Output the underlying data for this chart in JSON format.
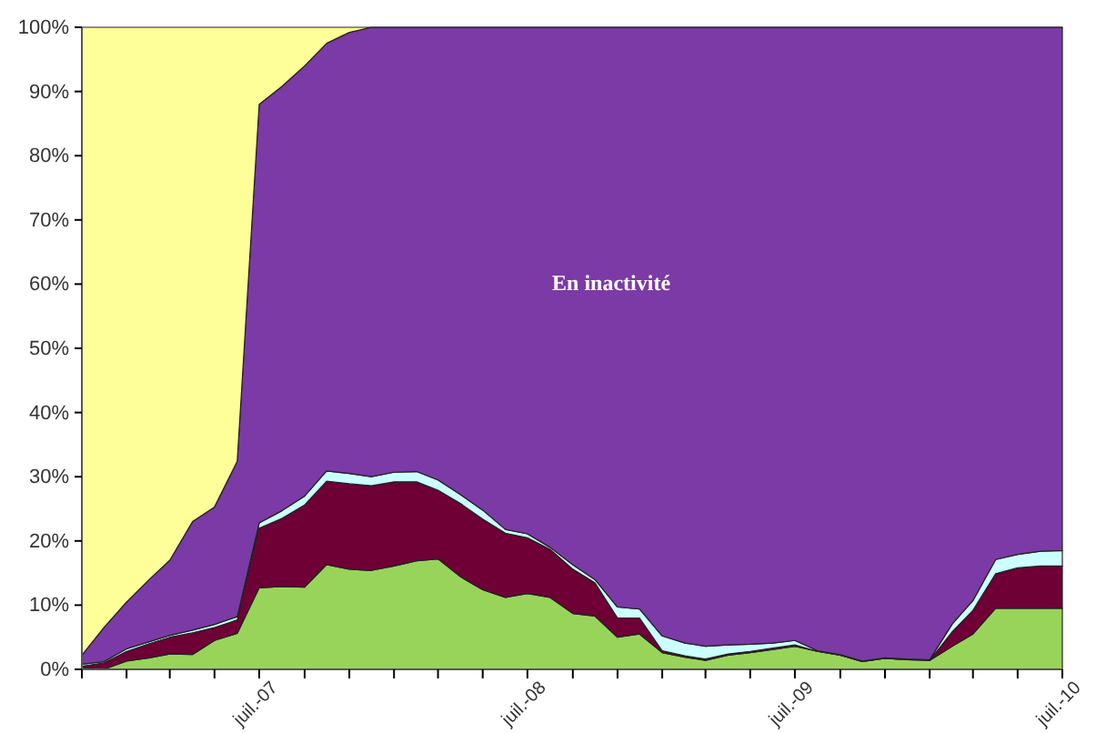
{
  "chart_data": {
    "type": "area",
    "stacked": true,
    "x": [
      "2006-11",
      "2006-12",
      "2007-01",
      "2007-02",
      "2007-03",
      "2007-04",
      "2007-05",
      "2007-06",
      "2007-07",
      "2007-08",
      "2007-09",
      "2007-10",
      "2007-11",
      "2007-12",
      "2008-01",
      "2008-02",
      "2008-03",
      "2008-04",
      "2008-05",
      "2008-06",
      "2008-07",
      "2008-08",
      "2008-09",
      "2008-10",
      "2008-11",
      "2008-12",
      "2009-01",
      "2009-02",
      "2009-03",
      "2009-04",
      "2009-05",
      "2009-06",
      "2009-07",
      "2009-08",
      "2009-09",
      "2009-10",
      "2009-11",
      "2009-12",
      "2010-01",
      "2010-02",
      "2010-03",
      "2010-04",
      "2010-05",
      "2010-06",
      "2010-07"
    ],
    "series": [
      {
        "color": "#99d45a",
        "values": [
          0.3,
          0,
          1.3,
          1.8,
          2.4,
          2.3,
          4.5,
          5.6,
          12.7,
          12.9,
          12.8,
          16.3,
          15.6,
          15.4,
          16.1,
          16.9,
          17.2,
          14.4,
          12.4,
          11.2,
          11.8,
          11.2,
          8.7,
          8.3,
          5.0,
          5.5,
          2.6,
          1.9,
          1.4,
          2.2,
          2.6,
          3.1,
          3.6,
          2.8,
          2.2,
          1.2,
          1.7,
          1.5,
          1.4,
          3.6,
          5.5,
          9.5,
          9.5,
          9.5,
          9.5
        ]
      },
      {
        "color": "#6e0036",
        "values": [
          0.2,
          1.0,
          1.5,
          2.2,
          2.6,
          3.4,
          2.0,
          2.1,
          9.3,
          10.6,
          12.8,
          13.0,
          13.3,
          13.2,
          13.1,
          12.3,
          10.7,
          11.4,
          11.0,
          10.0,
          8.7,
          7.5,
          6.9,
          5.2,
          3.0,
          2.5,
          0.3,
          0.2,
          0.2,
          0.2,
          0.2,
          0.2,
          0.2,
          0,
          0,
          0,
          0,
          0,
          0,
          2.3,
          3.7,
          5.4,
          6.3,
          6.6,
          6.6
        ]
      },
      {
        "color": "#ccffff",
        "values": [
          0.3,
          0.2,
          0.4,
          0.3,
          0.3,
          0.4,
          0.5,
          0.5,
          0.8,
          1.2,
          1.4,
          1.6,
          1.6,
          1.4,
          1.5,
          1.6,
          1.6,
          1.4,
          1.4,
          0.6,
          0.6,
          0.3,
          0.7,
          0.5,
          1.7,
          1.4,
          2.3,
          2.0,
          2.0,
          1.4,
          1.1,
          0.8,
          0.7,
          0.1,
          0.1,
          0.1,
          0.1,
          0.1,
          0.1,
          1.2,
          1.5,
          2.2,
          2.1,
          2.3,
          2.4
        ]
      },
      {
        "color": "#7b3aa6",
        "values": [
          1.4,
          5.3,
          7.3,
          9.7,
          11.7,
          16.9,
          18.3,
          24.2,
          65.2,
          66.1,
          67.0,
          66.6,
          68.7,
          70.0,
          69.3,
          69.2,
          70.5,
          72.8,
          75.2,
          78.2,
          78.9,
          81.0,
          83.7,
          86.0,
          90.3,
          90.6,
          94.8,
          95.9,
          96.4,
          96.2,
          96.1,
          95.9,
          95.5,
          97.1,
          97.7,
          98.7,
          98.2,
          98.4,
          98.5,
          92.9,
          89.3,
          82.9,
          82.1,
          81.6,
          81.5
        ]
      },
      {
        "color": "#ffff99",
        "values": [
          97.8,
          93.5,
          89.5,
          86,
          83,
          77,
          74.7,
          67.6,
          12,
          9.2,
          6,
          2.5,
          0.8,
          0,
          0,
          0,
          0,
          0,
          0,
          0,
          0,
          0,
          0,
          0,
          0,
          0,
          0,
          0,
          0,
          0,
          0,
          0,
          0,
          0,
          0,
          0,
          0,
          0,
          0,
          0,
          0,
          0,
          0,
          0,
          0
        ]
      }
    ],
    "xlim": [
      "2006-11",
      "2010-07"
    ],
    "xticks": [
      {
        "value": "2006-11",
        "label": null
      },
      {
        "value": "2007-01",
        "label": null
      },
      {
        "value": "2007-03",
        "label": null
      },
      {
        "value": "2007-05",
        "label": null
      },
      {
        "value": "2007-07",
        "label": "juil.-07"
      },
      {
        "value": "2007-09",
        "label": null
      },
      {
        "value": "2007-11",
        "label": null
      },
      {
        "value": "2008-01",
        "label": null
      },
      {
        "value": "2008-03",
        "label": null
      },
      {
        "value": "2008-05",
        "label": null
      },
      {
        "value": "2008-07",
        "label": "juil.-08"
      },
      {
        "value": "2008-09",
        "label": null
      },
      {
        "value": "2008-11",
        "label": null
      },
      {
        "value": "2009-01",
        "label": null
      },
      {
        "value": "2009-03",
        "label": null
      },
      {
        "value": "2009-05",
        "label": null
      },
      {
        "value": "2009-07",
        "label": "juil.-09"
      },
      {
        "value": "2009-09",
        "label": null
      },
      {
        "value": "2009-11",
        "label": null
      },
      {
        "value": "2010-01",
        "label": null
      },
      {
        "value": "2010-03",
        "label": null
      },
      {
        "value": "2010-05",
        "label": null
      },
      {
        "value": "2010-07",
        "label": "juil.-10"
      }
    ],
    "ylim": [
      0,
      100
    ],
    "yticks": [
      {
        "value": 0,
        "label": "0%"
      },
      {
        "value": 10,
        "label": "10%"
      },
      {
        "value": 20,
        "label": "20%"
      },
      {
        "value": 30,
        "label": "30%"
      },
      {
        "value": 40,
        "label": "40%"
      },
      {
        "value": 50,
        "label": "50%"
      },
      {
        "value": 60,
        "label": "60%"
      },
      {
        "value": 70,
        "label": "70%"
      },
      {
        "value": 80,
        "label": "80%"
      },
      {
        "value": 90,
        "label": "90%"
      },
      {
        "value": 100,
        "label": "100%"
      }
    ],
    "annotations": [
      "En inactivité"
    ]
  }
}
